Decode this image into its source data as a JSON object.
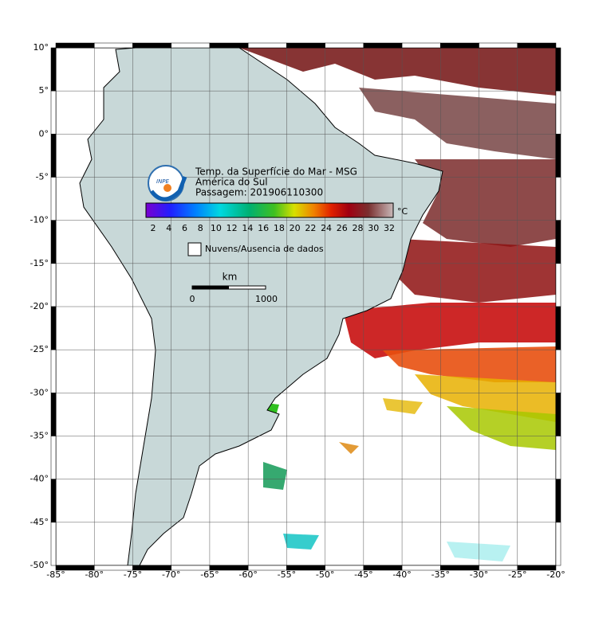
{
  "title_lines": [
    "Temp. da Superfície do Mar - MSG",
    "América do Sul",
    "Passagem: 201906110300"
  ],
  "logo": "INPE",
  "colorbar": {
    "unit": "°C",
    "ticks": [
      2,
      4,
      6,
      8,
      10,
      12,
      14,
      16,
      18,
      20,
      22,
      24,
      26,
      28,
      30,
      32
    ]
  },
  "legend": "Nuvens/Ausencia de dados",
  "scale_bar": {
    "unit": "km",
    "labels": [
      0,
      1000
    ]
  },
  "lon_labels": [
    "-85°",
    "-80°",
    "-75°",
    "-70°",
    "-65°",
    "-60°",
    "-55°",
    "-50°",
    "-45°",
    "-40°",
    "-35°",
    "-30°",
    "-25°",
    "-20°"
  ],
  "lat_labels": [
    "10°",
    "5°",
    "0°",
    "-5°",
    "-10°",
    "-15°",
    "-20°",
    "-25°",
    "-30°",
    "-35°",
    "-40°",
    "-45°",
    "-50°"
  ]
}
